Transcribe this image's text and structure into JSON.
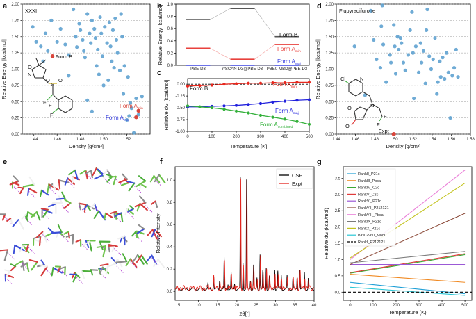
{
  "chart_data": [
    {
      "id": "a",
      "type": "scatter",
      "title": "XXXI",
      "xlabel": "Density [g/cm³]",
      "ylabel": "Relative Energy [kcal/mol]",
      "xlim": [
        1.43,
        1.54
      ],
      "ylim": [
        0,
        2.0
      ],
      "xticks": [
        "1.44",
        "1.46",
        "1.48",
        "1.50",
        "1.52"
      ],
      "xtick_values": [
        1.44,
        1.46,
        1.48,
        1.5,
        1.52
      ],
      "yticks": [
        "0.00",
        "0.25",
        "0.50",
        "0.75",
        "1.00",
        "1.25",
        "1.50",
        "1.75",
        "2.00"
      ],
      "ytick_values": [
        0,
        0.25,
        0.5,
        0.75,
        1,
        1.25,
        1.5,
        1.75,
        2
      ],
      "color": "#5fa2d0",
      "points": [
        [
          1.439,
          1.65
        ],
        [
          1.442,
          1.42
        ],
        [
          1.446,
          1.35
        ],
        [
          1.448,
          1.12
        ],
        [
          1.45,
          1.55
        ],
        [
          1.452,
          1.28
        ],
        [
          1.455,
          1.75
        ],
        [
          1.46,
          1.42
        ],
        [
          1.463,
          1.62
        ],
        [
          1.467,
          1.38
        ],
        [
          1.47,
          1.22
        ],
        [
          1.474,
          1.92
        ],
        [
          1.476,
          1.5
        ],
        [
          1.477,
          1.34
        ],
        [
          1.479,
          1.7
        ],
        [
          1.48,
          1.6
        ],
        [
          1.482,
          1.45
        ],
        [
          1.483,
          1.28
        ],
        [
          1.484,
          1.18
        ],
        [
          1.486,
          1.85
        ],
        [
          1.488,
          1.55
        ],
        [
          1.489,
          1.4
        ],
        [
          1.49,
          1.75
        ],
        [
          1.492,
          1.62
        ],
        [
          1.493,
          1.48
        ],
        [
          1.494,
          1.05
        ],
        [
          1.495,
          1.3
        ],
        [
          1.496,
          0.92
        ],
        [
          1.497,
          1.8
        ],
        [
          1.498,
          1.55
        ],
        [
          1.499,
          1.2
        ],
        [
          1.5,
          0.75
        ],
        [
          1.501,
          1.65
        ],
        [
          1.503,
          1.4
        ],
        [
          1.504,
          0.83
        ],
        [
          1.505,
          1.72
        ],
        [
          1.506,
          1.35
        ],
        [
          1.507,
          1.12
        ],
        [
          1.508,
          1.6
        ],
        [
          1.509,
          1.02
        ],
        [
          1.51,
          1.78
        ],
        [
          1.511,
          1.45
        ],
        [
          1.512,
          1.25
        ],
        [
          1.514,
          0.98
        ],
        [
          1.515,
          1.85
        ],
        [
          1.516,
          1.5
        ],
        [
          1.517,
          0.62
        ],
        [
          1.518,
          1.05
        ],
        [
          1.52,
          0.22
        ],
        [
          1.521,
          0.88
        ],
        [
          1.522,
          0.28
        ],
        [
          1.523,
          0.48
        ],
        [
          1.524,
          0.4
        ],
        [
          1.526,
          0.02
        ],
        [
          1.528,
          0.55
        ],
        [
          1.53,
          0.3
        ],
        [
          1.533,
          0.58
        ],
        [
          1.486,
          0.52
        ],
        [
          1.47,
          0.9
        ],
        [
          1.49,
          0.35
        ]
      ],
      "highlights": [
        {
          "label": "Form B",
          "x": 1.456,
          "y": 1.2,
          "color": "#d9453b"
        },
        {
          "label": "Form A",
          "sub": "min",
          "x": 1.53,
          "y": 0.36,
          "color": "#d9453b"
        },
        {
          "label": "Form A",
          "sub": "maj",
          "x": 1.528,
          "y": 0.26,
          "color": "#d9453b"
        }
      ],
      "molecule_atoms": [
        "O",
        "N",
        "S",
        "O",
        "O",
        "F",
        "F",
        "F"
      ]
    },
    {
      "id": "b",
      "type": "line",
      "ylabel": "Relative Energy [kcal/mol]",
      "categories": [
        "PBE-D3",
        "r²SCAN-D3@PBE-D3",
        "PBE0-MBD@PBE-D3"
      ],
      "ylim": [
        0,
        1.0
      ],
      "yticks": [
        "0.0",
        "0.2",
        "0.4",
        "0.6",
        "0.8",
        "1.0"
      ],
      "ytick_values": [
        0,
        0.2,
        0.4,
        0.6,
        0.8,
        1.0
      ],
      "series": [
        {
          "name": "Form B",
          "values": [
            0.75,
            0.93,
            0.47
          ],
          "color": "#555555"
        },
        {
          "name": "Form A",
          "sub": "min",
          "values": [
            0.28,
            0.1,
            0.34
          ],
          "color": "#e8413c"
        },
        {
          "name": "Form A",
          "sub": "maj",
          "values": [
            0.0,
            0.0,
            0.0
          ],
          "color": "#3b43e0"
        }
      ]
    },
    {
      "id": "c",
      "type": "line",
      "xlabel": "Temperature [K]",
      "ylabel": "Relative dG [kcal/mol]",
      "xlim": [
        0,
        500
      ],
      "ylim": [
        -1.0,
        0.12
      ],
      "xticks": [
        "0",
        "100",
        "200",
        "300",
        "400",
        "500"
      ],
      "xtick_values": [
        0,
        100,
        200,
        300,
        400,
        500
      ],
      "yticks": [
        "0.00",
        "-0.25",
        "-0.50",
        "-0.75",
        "-1.00"
      ],
      "ytick_values": [
        0,
        -0.25,
        -0.5,
        -0.75,
        -1.0
      ],
      "x": [
        0,
        50,
        100,
        150,
        200,
        250,
        300,
        350,
        400,
        450,
        500
      ],
      "series": [
        {
          "name": "Form B",
          "values": [
            0,
            0,
            0,
            0,
            0,
            0,
            0,
            0,
            0,
            0,
            0
          ],
          "color": "#000000",
          "style": "dashed"
        },
        {
          "name": "Form A",
          "sub": "min",
          "values": [
            -0.04,
            -0.03,
            -0.02,
            0.0,
            0.01,
            0.02,
            0.02,
            0.03,
            0.03,
            0.04,
            0.04
          ],
          "color": "#e8281e"
        },
        {
          "name": "Form A",
          "sub": "maj",
          "values": [
            -0.48,
            -0.48,
            -0.47,
            -0.46,
            -0.45,
            -0.43,
            -0.41,
            -0.38,
            -0.36,
            -0.34,
            -0.33
          ],
          "color": "#2222dd"
        },
        {
          "name": "Form A",
          "sub": "combined",
          "values": [
            -0.46,
            -0.48,
            -0.5,
            -0.53,
            -0.57,
            -0.61,
            -0.66,
            -0.7,
            -0.74,
            -0.79,
            -0.85
          ],
          "color": "#33b03a"
        }
      ]
    },
    {
      "id": "d",
      "type": "scatter",
      "title": "Flupyradifurone",
      "xlabel": "Density [g/cm³]",
      "ylabel": "Relative Energy [kcal/mol]",
      "xlim": [
        1.44,
        1.58
      ],
      "ylim": [
        0,
        2.0
      ],
      "xticks": [
        "1.44",
        "1.46",
        "1.48",
        "1.50",
        "1.52",
        "1.54",
        "1.56",
        "1.58"
      ],
      "xtick_values": [
        1.44,
        1.46,
        1.48,
        1.5,
        1.52,
        1.54,
        1.56,
        1.58
      ],
      "yticks": [
        "0.00",
        "0.25",
        "0.50",
        "0.75",
        "1.00",
        "1.25",
        "1.50",
        "1.75",
        "2.00"
      ],
      "ytick_values": [
        0,
        0.25,
        0.5,
        0.75,
        1,
        1.25,
        1.5,
        1.75,
        2
      ],
      "color": "#5fa2d0",
      "points": [
        [
          1.459,
          1.35
        ],
        [
          1.47,
          0.6
        ],
        [
          1.476,
          1.9
        ],
        [
          1.479,
          1.45
        ],
        [
          1.482,
          1.15
        ],
        [
          1.486,
          1.02
        ],
        [
          1.487,
          1.66
        ],
        [
          1.488,
          1.98
        ],
        [
          1.489,
          1.38
        ],
        [
          1.492,
          0.8
        ],
        [
          1.496,
          1.22
        ],
        [
          1.497,
          1.1
        ],
        [
          1.5,
          1.68
        ],
        [
          1.501,
          1.35
        ],
        [
          1.502,
          0.93
        ],
        [
          1.504,
          1.5
        ],
        [
          1.505,
          1.3
        ],
        [
          1.507,
          1.48
        ],
        [
          1.508,
          1.4
        ],
        [
          1.51,
          1.1
        ],
        [
          1.512,
          0.98
        ],
        [
          1.515,
          1.22
        ],
        [
          1.517,
          1.6
        ],
        [
          1.519,
          1.88
        ],
        [
          1.52,
          1.25
        ],
        [
          1.521,
          0.55
        ],
        [
          1.523,
          1.35
        ],
        [
          1.526,
          0.95
        ],
        [
          1.528,
          1.4
        ],
        [
          1.529,
          1.1
        ],
        [
          1.531,
          1.28
        ],
        [
          1.533,
          0.78
        ],
        [
          1.534,
          1.6
        ],
        [
          1.535,
          1.92
        ],
        [
          1.537,
          1.2
        ],
        [
          1.539,
          1.0
        ],
        [
          1.541,
          1.15
        ],
        [
          1.543,
          1.48
        ],
        [
          1.545,
          0.62
        ],
        [
          1.546,
          0.8
        ],
        [
          1.548,
          1.12
        ],
        [
          1.549,
          0.88
        ],
        [
          1.551,
          1.18
        ],
        [
          1.553,
          0.85
        ],
        [
          1.555,
          1.25
        ],
        [
          1.557,
          0.95
        ],
        [
          1.559,
          0.25
        ],
        [
          1.561,
          0.9
        ],
        [
          1.563,
          1.02
        ],
        [
          1.565,
          1.3
        ],
        [
          1.567,
          0.88
        ]
      ],
      "highlights": [
        {
          "label": "Expt",
          "x": 1.5,
          "y": 0.0,
          "color": "#d9453b"
        }
      ],
      "molecule_atoms": [
        "Cl",
        "N",
        "N",
        "O",
        "O",
        "F",
        "F"
      ]
    },
    {
      "id": "e",
      "type": "image",
      "description_label": "crystal packing"
    },
    {
      "id": "f",
      "type": "line",
      "xlabel": "2θ[°]",
      "ylabel": "Relative Intensity",
      "xlim": [
        4,
        40
      ],
      "ylim": [
        -0.08,
        1.12
      ],
      "xticks": [
        "5",
        "10",
        "15",
        "20",
        "25",
        "30",
        "35",
        "40"
      ],
      "xtick_values": [
        5,
        10,
        15,
        20,
        25,
        30,
        35,
        40
      ],
      "yticks": [
        "0.0",
        "0.2",
        "0.4",
        "0.6",
        "0.8",
        "1.0"
      ],
      "ytick_values": [
        0,
        0.2,
        0.4,
        0.6,
        0.8,
        1.0
      ],
      "series": [
        {
          "name": "CSP",
          "color": "#000000",
          "peaks": [
            [
              12.5,
              0.05
            ],
            [
              14.0,
              0.12
            ],
            [
              15.5,
              0.08
            ],
            [
              16.7,
              0.28
            ],
            [
              17.7,
              0.05
            ],
            [
              18.5,
              0.15
            ],
            [
              19.4,
              0.05
            ],
            [
              20.9,
              1.0
            ],
            [
              21.6,
              0.24
            ],
            [
              22.5,
              0.98
            ],
            [
              23.5,
              0.08
            ],
            [
              24.3,
              0.22
            ],
            [
              25.2,
              0.1
            ],
            [
              26.0,
              0.32
            ],
            [
              26.7,
              0.16
            ],
            [
              27.6,
              0.2
            ],
            [
              28.4,
              0.12
            ],
            [
              29.8,
              0.18
            ],
            [
              30.6,
              0.16
            ],
            [
              31.5,
              0.13
            ],
            [
              33.0,
              0.12
            ],
            [
              34.5,
              0.1
            ],
            [
              35.6,
              0.12
            ],
            [
              36.3,
              0.18
            ],
            [
              37.5,
              0.15
            ],
            [
              38.5,
              0.1
            ]
          ]
        },
        {
          "name": "Expt",
          "color": "#e3241d",
          "peaks": [
            [
              12.6,
              0.04
            ],
            [
              14.0,
              0.1
            ],
            [
              15.6,
              0.06
            ],
            [
              16.8,
              0.25
            ],
            [
              17.8,
              0.04
            ],
            [
              18.6,
              0.13
            ],
            [
              19.5,
              0.05
            ],
            [
              21.0,
              0.98
            ],
            [
              21.7,
              0.2
            ],
            [
              22.6,
              0.95
            ],
            [
              23.6,
              0.06
            ],
            [
              24.4,
              0.18
            ],
            [
              25.3,
              0.08
            ],
            [
              26.1,
              0.28
            ],
            [
              26.8,
              0.13
            ],
            [
              27.7,
              0.17
            ],
            [
              28.5,
              0.1
            ],
            [
              29.9,
              0.15
            ],
            [
              30.7,
              0.13
            ],
            [
              31.6,
              0.11
            ],
            [
              33.1,
              0.1
            ],
            [
              34.6,
              0.08
            ],
            [
              35.7,
              0.1
            ],
            [
              36.4,
              0.14
            ],
            [
              37.6,
              0.11
            ],
            [
              38.6,
              0.08
            ]
          ]
        }
      ]
    },
    {
      "id": "g",
      "type": "line",
      "xlabel": "Temperature (K)",
      "ylabel": "Relative dG (kcal/mol)",
      "xlim": [
        -30,
        530
      ],
      "ylim": [
        -0.25,
        3.85
      ],
      "xticks": [
        "0",
        "100",
        "200",
        "300",
        "400",
        "500"
      ],
      "xtick_values": [
        0,
        100,
        200,
        300,
        400,
        500
      ],
      "yticks": [
        "0.0",
        "0.5",
        "1.0",
        "1.5",
        "2.0",
        "2.5",
        "3.0",
        "3.5"
      ],
      "ytick_values": [
        0,
        0.5,
        1,
        1.5,
        2,
        2.5,
        3,
        3.5
      ],
      "series": [
        {
          "name": "RankII_P21c",
          "color": "#1f9fd6",
          "start": 0.3,
          "end": -0.05
        },
        {
          "name": "RankIII_Pbca",
          "color": "#f08a24",
          "start": 0.55,
          "end": 0.3
        },
        {
          "name": "RankIV_C2c",
          "color": "#3aa835",
          "start": 0.58,
          "end": 1.15
        },
        {
          "name": "RankV_C2c",
          "color": "#e03b3b",
          "start": 0.6,
          "end": 1.18
        },
        {
          "name": "RankVI_P21c",
          "color": "#9b59d6",
          "start": 0.85,
          "end": 0.85
        },
        {
          "name": "RankVII_P212121",
          "color": "#8c4b3a",
          "start": 0.85,
          "end": 2.42
        },
        {
          "name": "RankVIII_Pbca",
          "color": "#ea7fd8",
          "start": 1.0,
          "end": 3.75
        },
        {
          "name": "RankIX_P21c",
          "color": "#7a7a7a",
          "start": 0.9,
          "end": 1.25
        },
        {
          "name": "RankX_P21c",
          "color": "#c3c31e",
          "start": 1.05,
          "end": 3.35
        },
        {
          "name": "BYI02960_ModII",
          "color": "#28c6d6",
          "start": 0.15,
          "end": -0.1
        },
        {
          "name": "RankI_P212121",
          "color": "#000000",
          "start": 0.0,
          "end": 0.0,
          "style": "dashed"
        }
      ]
    }
  ]
}
